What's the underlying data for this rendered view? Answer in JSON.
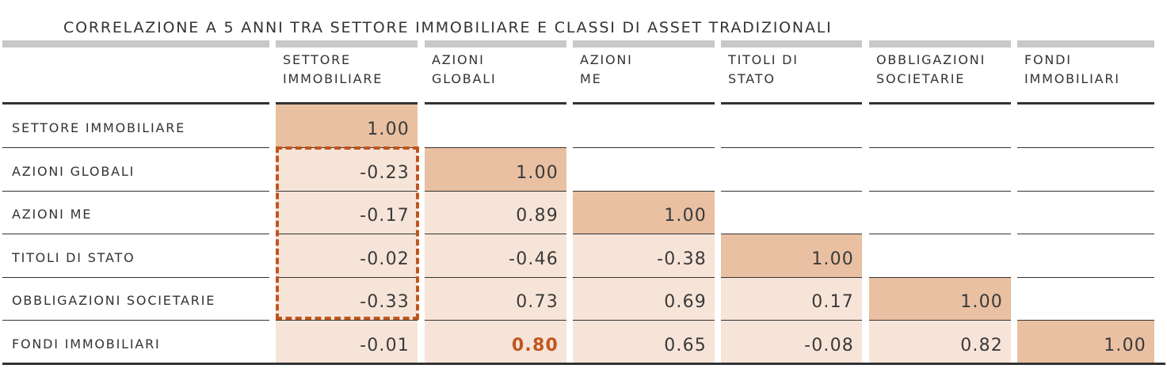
{
  "title": "CORRELAZIONE A 5 ANNI TRA SETTORE IMMOBILIARE E CLASSI DI ASSET TRADIZIONALI",
  "colors": {
    "diagonal": "#e9c0a2",
    "light": "#f7e4d8",
    "accent": "#c0561e",
    "gray_bar": "#c8c8c8",
    "lines": "#333333"
  },
  "columns": [
    {
      "l1": "SETTORE",
      "l2": "IMMOBILIARE"
    },
    {
      "l1": "AZIONI",
      "l2": "GLOBALI"
    },
    {
      "l1": "AZIONI",
      "l2": "ME"
    },
    {
      "l1": "TITOLI DI",
      "l2": "STATO"
    },
    {
      "l1": "OBBLIGAZIONI",
      "l2": "SOCIETARIE"
    },
    {
      "l1": "FONDI",
      "l2": "IMMOBILIARI"
    }
  ],
  "rows": [
    "SETTORE IMMOBILIARE",
    "AZIONI GLOBALI",
    "AZIONI ME",
    "TITOLI DI STATO",
    "OBBLIGAZIONI SOCIETARIE",
    "FONDI IMMOBILIARI"
  ],
  "chart_data": {
    "type": "heatmap",
    "title": "CORRELAZIONE A 5 ANNI TRA SETTORE IMMOBILIARE E CLASSI DI ASSET TRADIZIONALI",
    "x_categories": [
      "SETTORE IMMOBILIARE",
      "AZIONI GLOBALI",
      "AZIONI ME",
      "TITOLI DI STATO",
      "OBBLIGAZIONI SOCIETARIE",
      "FONDI IMMOBILIARI"
    ],
    "y_categories": [
      "SETTORE IMMOBILIARE",
      "AZIONI GLOBALI",
      "AZIONI ME",
      "TITOLI DI STATO",
      "OBBLIGAZIONI SOCIETARIE",
      "FONDI IMMOBILIARI"
    ],
    "values": [
      [
        "1.00",
        null,
        null,
        null,
        null,
        null
      ],
      [
        "-0.23",
        "1.00",
        null,
        null,
        null,
        null
      ],
      [
        "-0.17",
        "0.89",
        "1.00",
        null,
        null,
        null
      ],
      [
        "-0.02",
        "-0.46",
        "-0.38",
        "1.00",
        null,
        null
      ],
      [
        "-0.33",
        "0.73",
        "0.69",
        "0.17",
        "1.00",
        null
      ],
      [
        "-0.01",
        "0.80",
        "0.65",
        "-0.08",
        "0.82",
        "1.00"
      ]
    ],
    "highlighted_value": {
      "row": 5,
      "col": 1
    },
    "highlighted_block": {
      "column": 0,
      "rows": [
        1,
        2,
        3,
        4
      ]
    }
  }
}
